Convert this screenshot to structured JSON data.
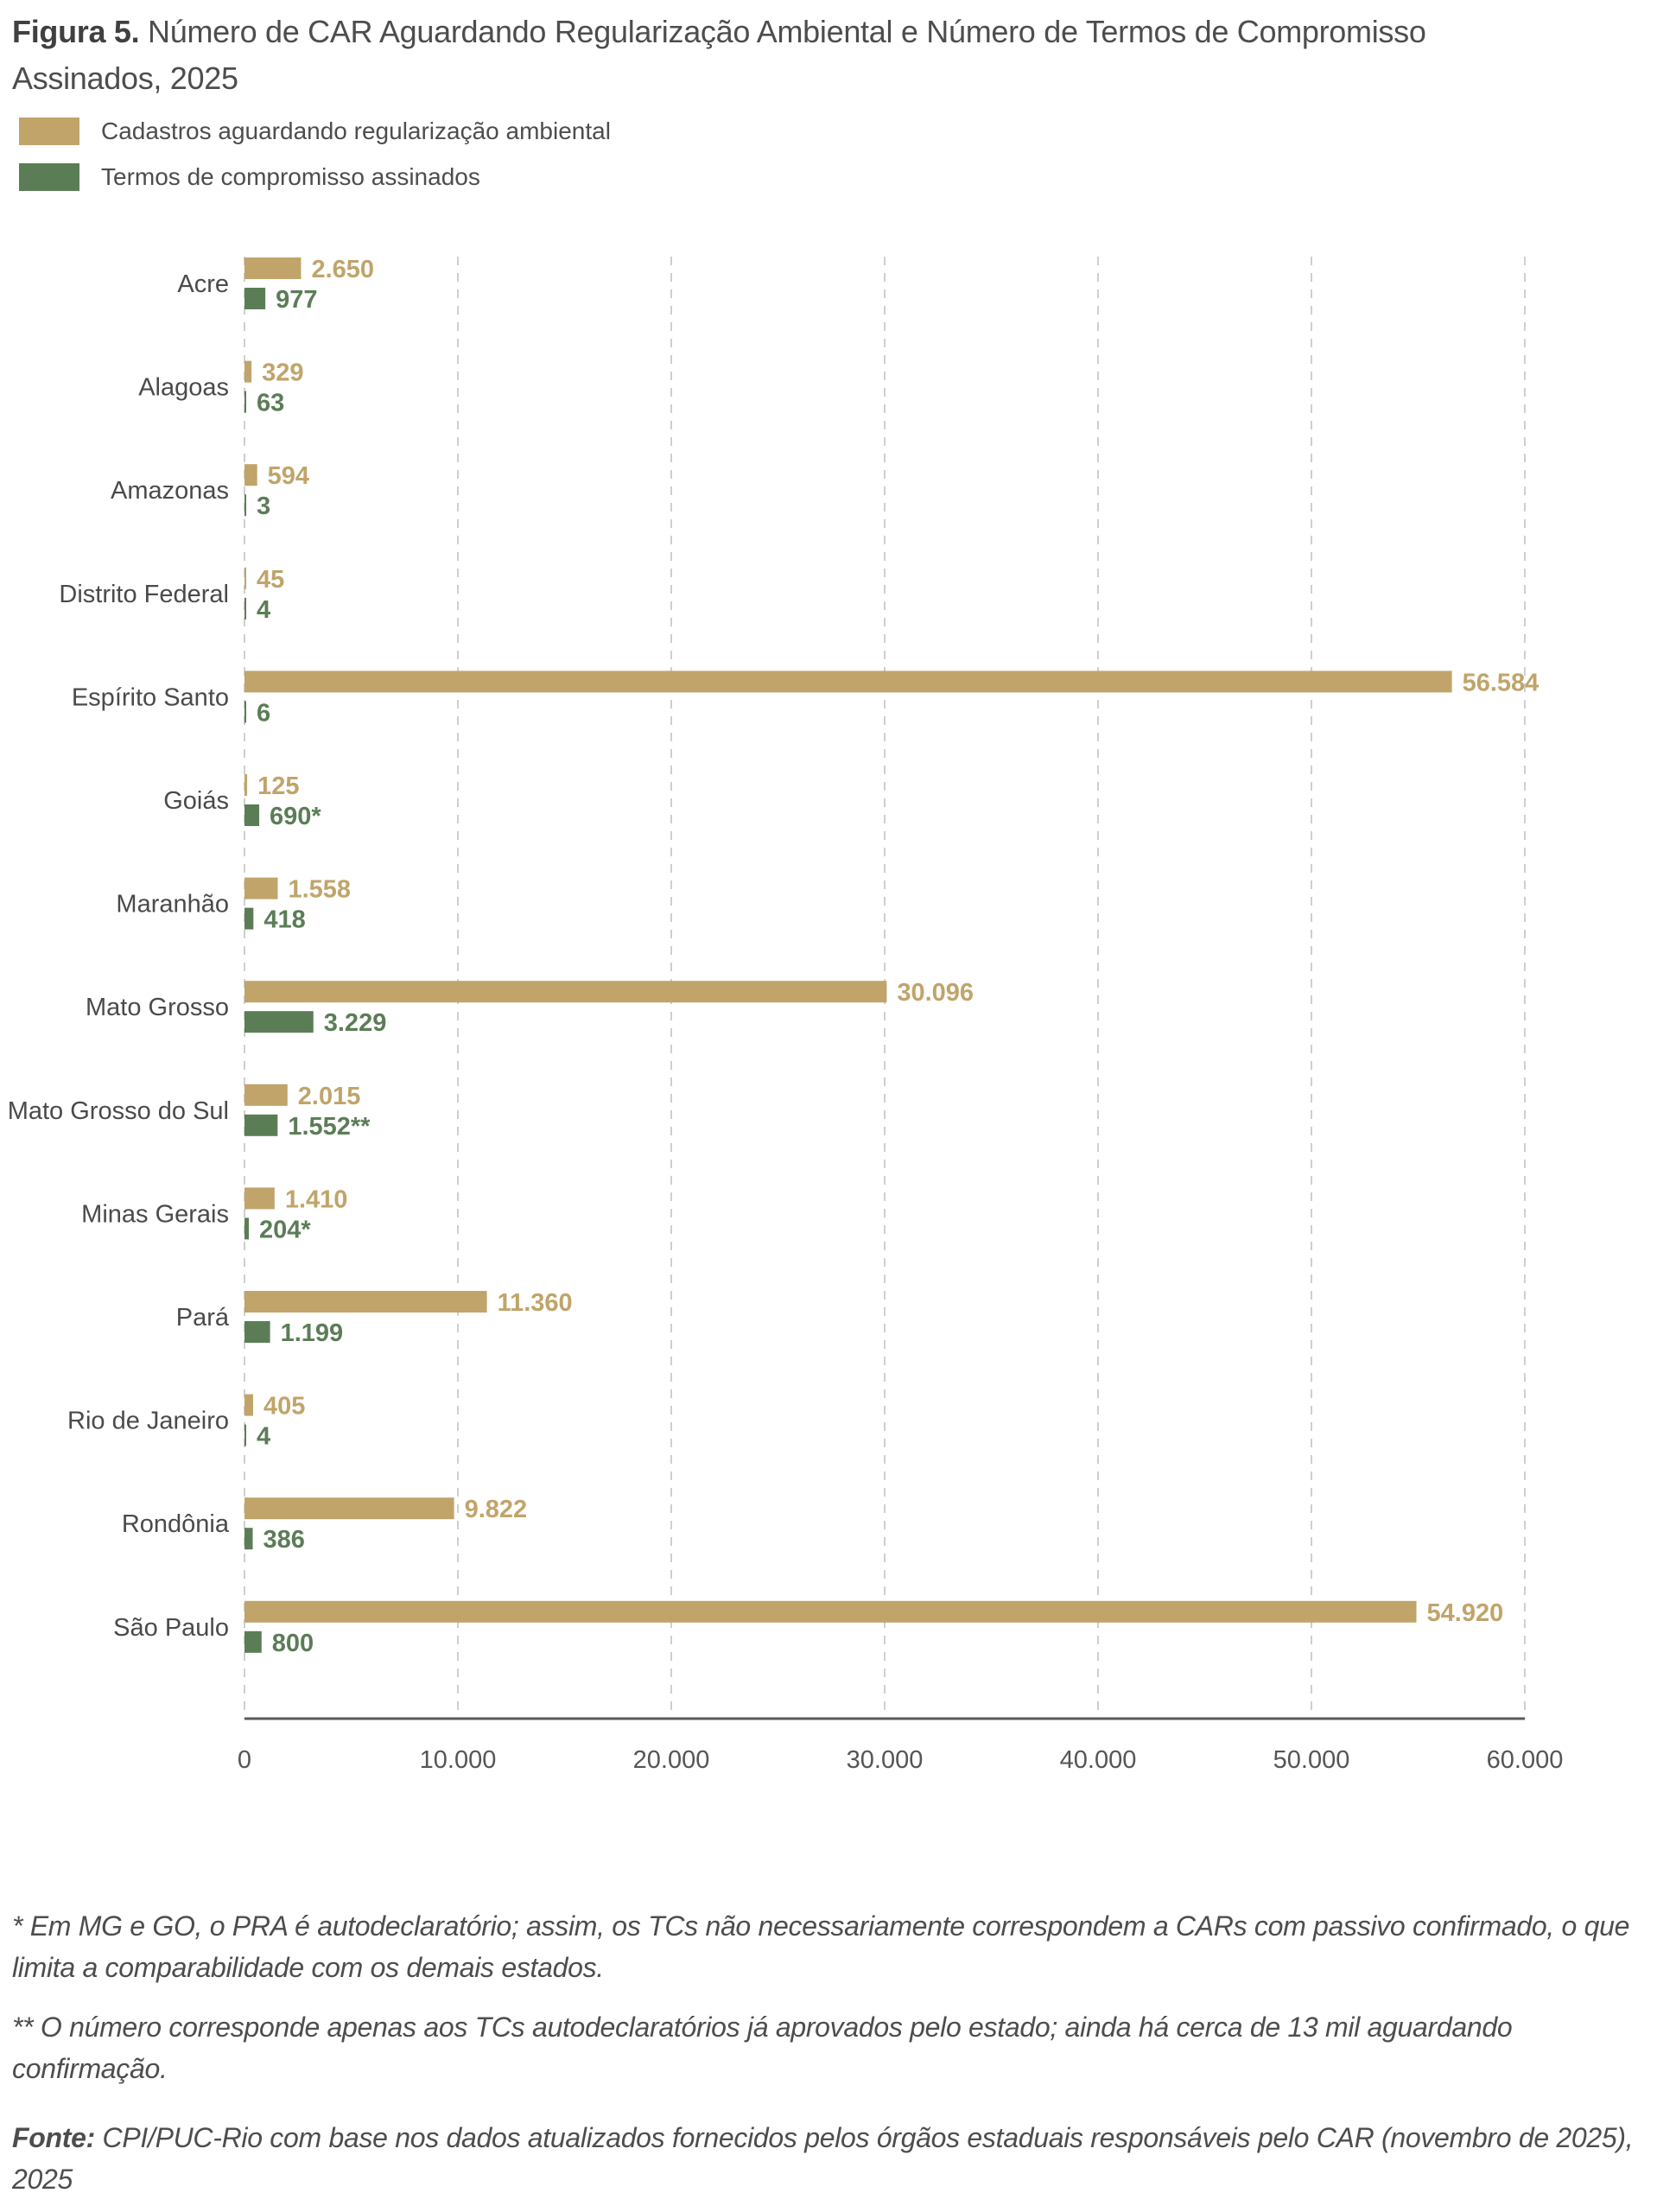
{
  "title": {
    "prefix": "Figura 5.",
    "text": " Número de CAR Aguardando Regularização Ambiental e Número de Termos de Compromisso Assinados, 2025"
  },
  "colors": {
    "cadastros": "#C0A46A",
    "termos": "#5B7D56",
    "axis_text": "#555555",
    "category_text": "#4a4a4a",
    "grid": "#cfcfcf",
    "axis_line": "#5a5a5a"
  },
  "chart_data": {
    "type": "bar",
    "orientation": "horizontal",
    "title": "Número de CAR Aguardando Regularização Ambiental e Número de Termos de Compromisso Assinados, 2025",
    "xlabel": "",
    "ylabel": "",
    "xlim": [
      0,
      60000
    ],
    "x_ticks": [
      0,
      10000,
      20000,
      30000,
      40000,
      50000,
      60000
    ],
    "x_tick_labels": [
      "0",
      "10.000",
      "20.000",
      "30.000",
      "40.000",
      "50.000",
      "60.000"
    ],
    "grid": "vertical dashed",
    "legend_position": "top-left",
    "categories": [
      "Acre",
      "Alagoas",
      "Amazonas",
      "Distrito Federal",
      "Espírito Santo",
      "Goiás",
      "Maranhão",
      "Mato Grosso",
      "Mato Grosso do Sul",
      "Minas Gerais",
      "Pará",
      "Rio de Janeiro",
      "Rondônia",
      "São Paulo"
    ],
    "series": [
      {
        "name": "Cadastros aguardando regularização ambiental",
        "key": "cadastros",
        "values": [
          2650,
          329,
          594,
          45,
          56584,
          125,
          1558,
          30096,
          2015,
          1410,
          11360,
          405,
          9822,
          54920
        ],
        "labels": [
          "2.650",
          "329",
          "594",
          "45",
          "56.584",
          "125",
          "1.558",
          "30.096",
          "2.015",
          "1.410",
          "11.360",
          "405",
          "9.822",
          "54.920"
        ]
      },
      {
        "name": "Termos de compromisso assinados",
        "key": "termos",
        "values": [
          977,
          63,
          3,
          4,
          6,
          690,
          418,
          3229,
          1552,
          204,
          1199,
          4,
          386,
          800
        ],
        "labels": [
          "977",
          "63",
          "3",
          "4",
          "6",
          "690*",
          "418",
          "3.229",
          "1.552**",
          "204*",
          "1.199",
          "4",
          "386",
          "800"
        ]
      }
    ]
  },
  "legend": [
    {
      "label": "Cadastros aguardando regularização ambiental",
      "color_key": "cadastros"
    },
    {
      "label": "Termos de compromisso assinados",
      "color_key": "termos"
    }
  ],
  "footnotes": {
    "note1": "* Em MG e GO, o PRA é autodeclaratório; assim, os TCs não necessariamente correspondem a CARs com passivo confirmado, o que limita a comparabilidade com os demais estados.",
    "note2": "** O número corresponde apenas aos TCs autodeclaratórios já aprovados pelo estado; ainda há cerca de 13 mil aguardando confirmação.",
    "source_label": "Fonte:",
    "source_text": " CPI/PUC-Rio com base nos dados atualizados fornecidos pelos órgãos estaduais responsáveis pelo CAR (novembro de 2025), 2025"
  }
}
